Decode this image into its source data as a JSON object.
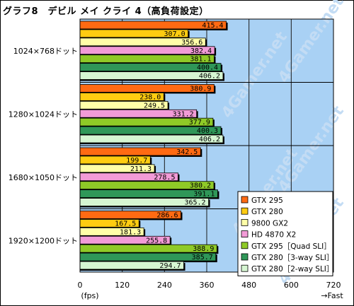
{
  "title": "グラフ8　デビル メイ クライ 4（高負荷設定）",
  "colors": {
    "plot_background": "#a9d1f4",
    "grid": "#1a1a1a",
    "watermark": "#c3dcf4"
  },
  "watermark_text": "4Gamer.net",
  "x_unit_label": "(fps)",
  "x_direction_label": "→Fast",
  "chart_data": {
    "type": "bar",
    "orientation": "horizontal",
    "title": "グラフ8　デビル メイ クライ 4（高負荷設定）",
    "categories": [
      "1024×768ドット",
      "1280×1024ドット",
      "1680×1050ドット",
      "1920×1200ドット"
    ],
    "xlim": [
      0,
      720
    ],
    "xticks": [
      0,
      120,
      240,
      360,
      480,
      600,
      720
    ],
    "grid": true,
    "legend_position": "bottom-right",
    "series": [
      {
        "name": "GTX 295",
        "color": "#ff6a13",
        "values": [
          415.4,
          380.9,
          342.5,
          286.6
        ]
      },
      {
        "name": "GTX 280",
        "color": "#ffcc11",
        "values": [
          307.0,
          238.0,
          199.7,
          167.5
        ]
      },
      {
        "name": "9800 GX2",
        "color": "#ffffa8",
        "values": [
          356.6,
          249.5,
          211.3,
          181.3
        ]
      },
      {
        "name": "HD 4870 X2",
        "color": "#f29bd7",
        "values": [
          382.4,
          331.2,
          278.5,
          255.8
        ]
      },
      {
        "name": "GTX 295［Quad SLI］",
        "color": "#8fca27",
        "values": [
          381.1,
          377.9,
          380.2,
          388.9
        ]
      },
      {
        "name": "GTX 280［3-way SLI］",
        "color": "#2f9758",
        "values": [
          400.4,
          400.3,
          391.1,
          385.7
        ]
      },
      {
        "name": "GTX 280［2-way SLI］",
        "color": "#d6f6d2",
        "values": [
          406.2,
          406.2,
          365.2,
          294.7
        ]
      }
    ]
  }
}
